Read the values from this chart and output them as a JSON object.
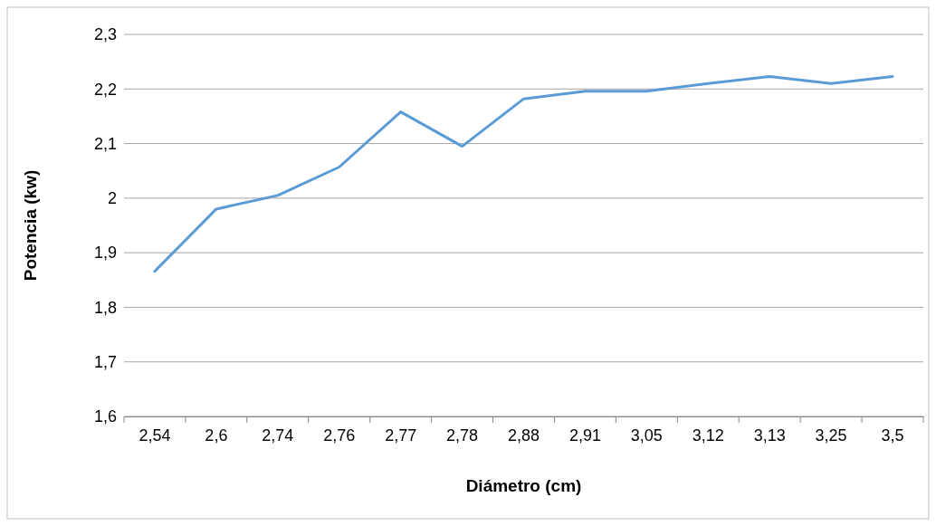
{
  "chart_data": {
    "type": "line",
    "xlabel": "Diámetro (cm)",
    "ylabel": "Potencia (kw)",
    "categories": [
      "2,54",
      "2,6",
      "2,74",
      "2,76",
      "2,77",
      "2,78",
      "2,88",
      "2,91",
      "3,05",
      "3,12",
      "3,13",
      "3,25",
      "3,5"
    ],
    "series": [
      {
        "color": "#5b9bd5",
        "values": [
          1.866,
          1.98,
          2.005,
          2.057,
          2.158,
          2.095,
          2.182,
          2.196,
          2.196,
          2.21,
          2.223,
          2.21,
          2.223
        ]
      }
    ],
    "ylim": [
      1.6,
      2.3
    ],
    "yticks": [
      {
        "value": 1.6,
        "label": "1,6"
      },
      {
        "value": 1.7,
        "label": "1,7"
      },
      {
        "value": 1.8,
        "label": "1,8"
      },
      {
        "value": 1.9,
        "label": "1,9"
      },
      {
        "value": 2,
        "label": "2"
      },
      {
        "value": 2.1,
        "label": "2,1"
      },
      {
        "value": 2.2,
        "label": "2,2"
      },
      {
        "value": 2.3,
        "label": "2,3"
      }
    ],
    "grid": "y",
    "marker": "none",
    "line_style": "solid"
  }
}
